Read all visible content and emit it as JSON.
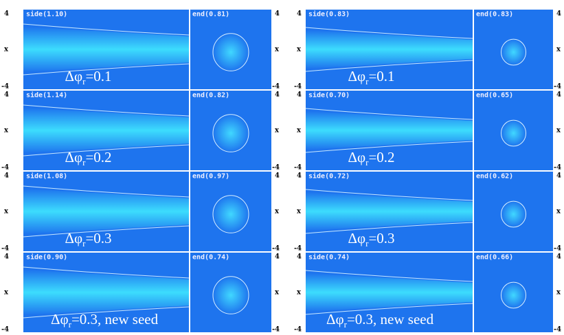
{
  "axis": {
    "top": "4",
    "mid": "x",
    "bottom": "-4"
  },
  "columns": [
    {
      "rows": [
        {
          "side": "side(1.10)",
          "end": "end(0.81)",
          "symbol": "Δφ",
          "sub": "r",
          "rest": "=0.1"
        },
        {
          "side": "side(1.14)",
          "end": "end(0.82)",
          "symbol": "Δφ",
          "sub": "r",
          "rest": "=0.2"
        },
        {
          "side": "side(1.08)",
          "end": "end(0.97)",
          "symbol": "Δφ",
          "sub": "r",
          "rest": "=0.3"
        },
        {
          "side": "side(0.90)",
          "end": "end(0.74)",
          "symbol": "Δφ",
          "sub": "r",
          "rest": "=0.3, new seed"
        }
      ]
    },
    {
      "rows": [
        {
          "side": "side(0.83)",
          "end": "end(0.83)",
          "symbol": "Δφ",
          "sub": "r",
          "rest": "=0.1"
        },
        {
          "side": "side(0.70)",
          "end": "end(0.65)",
          "symbol": "Δφ",
          "sub": "r",
          "rest": "=0.2"
        },
        {
          "side": "side(0.72)",
          "end": "end(0.62)",
          "symbol": "Δφ",
          "sub": "r",
          "rest": "=0.3"
        },
        {
          "side": "side(0.74)",
          "end": "end(0.66)",
          "symbol": "Δφ",
          "sub": "r",
          "rest": "=0.3, new seed"
        }
      ]
    }
  ]
}
